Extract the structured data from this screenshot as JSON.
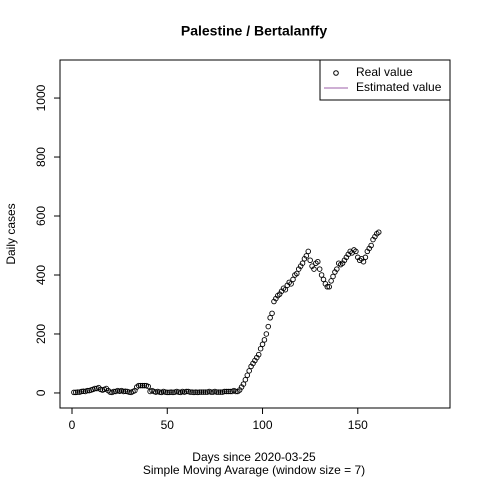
{
  "chart_data": {
    "type": "scatter",
    "title": "Palestine / Bertalanffy",
    "xlabel": "Days since 2020-03-25",
    "subtitle": "Simple Moving Avarage (window size = 7)",
    "ylabel": "Daily cases",
    "xlim": [
      -6.3,
      198.4
    ],
    "ylim": [
      -51,
      1129
    ],
    "xticks": [
      0,
      50,
      100,
      150
    ],
    "yticks": [
      0,
      200,
      400,
      600,
      800,
      1000
    ],
    "legend_position": "topright",
    "series": [
      {
        "name": "Real value",
        "color": "#000000",
        "x": [
          1,
          2,
          3,
          4,
          5,
          6,
          7,
          8,
          9,
          10,
          11,
          12,
          13,
          14,
          15,
          16,
          17,
          18,
          19,
          20,
          21,
          22,
          23,
          24,
          25,
          26,
          27,
          28,
          29,
          30,
          31,
          32,
          33,
          34,
          35,
          36,
          37,
          38,
          39,
          40,
          41,
          42,
          43,
          44,
          45,
          46,
          47,
          48,
          49,
          50,
          51,
          52,
          53,
          54,
          55,
          56,
          57,
          58,
          59,
          60,
          61,
          62,
          63,
          64,
          65,
          66,
          67,
          68,
          69,
          70,
          71,
          72,
          73,
          74,
          75,
          76,
          77,
          78,
          79,
          80,
          81,
          82,
          83,
          84,
          85,
          86,
          87,
          88,
          89,
          90,
          91,
          92,
          93,
          94,
          95,
          96,
          97,
          98,
          99,
          100,
          101,
          102,
          103,
          104,
          105,
          106,
          107,
          108,
          109,
          110,
          111,
          112,
          113,
          114,
          115,
          116,
          117,
          118,
          119,
          120,
          121,
          122,
          123,
          124,
          125,
          126,
          127,
          128,
          129,
          130,
          131,
          132,
          133,
          134,
          135,
          136,
          137,
          138,
          139,
          140,
          141,
          142,
          143,
          144,
          145,
          146,
          147,
          148,
          149,
          150,
          151,
          152,
          153,
          154,
          155,
          156,
          157,
          158,
          159,
          160,
          161
        ],
        "values": [
          2,
          2,
          3,
          3,
          5,
          6,
          5,
          8,
          8,
          10,
          12,
          15,
          15,
          18,
          12,
          10,
          12,
          15,
          8,
          3,
          2,
          5,
          5,
          8,
          6,
          8,
          5,
          6,
          5,
          3,
          2,
          5,
          8,
          20,
          25,
          25,
          25,
          25,
          25,
          22,
          5,
          8,
          5,
          3,
          5,
          3,
          2,
          5,
          3,
          2,
          2,
          3,
          2,
          3,
          5,
          3,
          2,
          5,
          3,
          5,
          5,
          3,
          3,
          2,
          3,
          2,
          3,
          3,
          3,
          3,
          3,
          5,
          3,
          3,
          5,
          3,
          3,
          3,
          3,
          5,
          5,
          5,
          5,
          5,
          8,
          5,
          5,
          10,
          20,
          30,
          45,
          60,
          75,
          90,
          100,
          110,
          120,
          130,
          150,
          165,
          180,
          200,
          225,
          255,
          270,
          310,
          320,
          330,
          335,
          345,
          355,
          350,
          365,
          375,
          370,
          385,
          400,
          405,
          420,
          430,
          440,
          455,
          465,
          480,
          450,
          430,
          420,
          440,
          445,
          420,
          400,
          385,
          370,
          360,
          360,
          380,
          395,
          410,
          420,
          440,
          435,
          440,
          450,
          460,
          470,
          480,
          475,
          485,
          480,
          460,
          450,
          455,
          445,
          460,
          480,
          490,
          500,
          520,
          530,
          540,
          545
        ]
      },
      {
        "name": "Estimated value",
        "color": "#9e5fa8"
      }
    ]
  }
}
